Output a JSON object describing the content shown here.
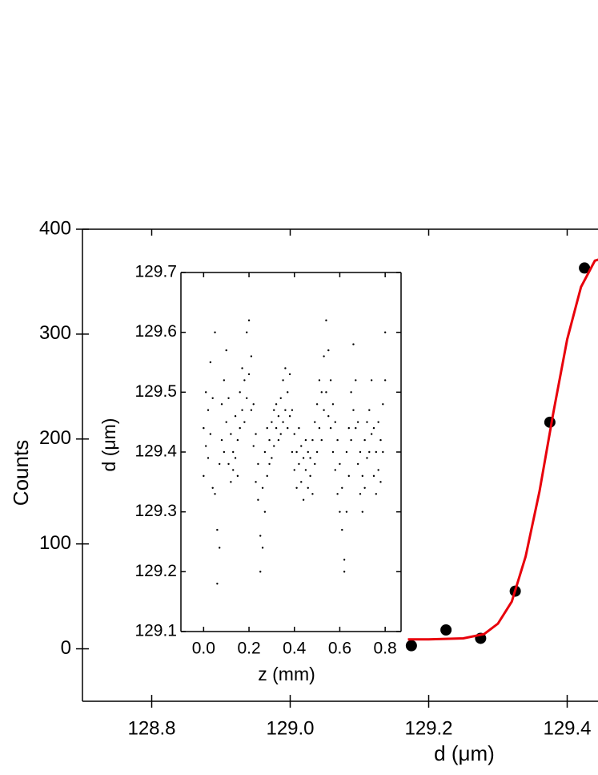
{
  "chart_data": [
    {
      "type": "scatter",
      "x_label": "d (μm)",
      "y_label": "Counts",
      "xlim": [
        128.7,
        129.45
      ],
      "xticks": [
        128.8,
        {
          "value": 129,
          "label": "129.0"
        },
        129.2,
        129.4
      ],
      "ylim": [
        -50,
        400
      ],
      "yticks": [
        0,
        100,
        200,
        300,
        400
      ],
      "series": [
        {
          "mode": "markers",
          "color": "#000000",
          "x": [
            129.175,
            129.225,
            129.275,
            129.325,
            129.375,
            129.425
          ],
          "values": [
            3,
            18,
            10,
            55,
            216,
            363
          ]
        },
        {
          "mode": "line",
          "color": "#e8000b",
          "x": [
            129.17,
            129.2,
            129.25,
            129.28,
            129.3,
            129.32,
            129.34,
            129.36,
            129.38,
            129.4,
            129.42,
            129.44,
            129.45
          ],
          "values": [
            9,
            9,
            10,
            14,
            24,
            45,
            88,
            150,
            225,
            295,
            345,
            370,
            372
          ]
        }
      ]
    },
    {
      "type": "scatter",
      "x_label": "z (mm)",
      "y_label": "d (μm)",
      "xlim": [
        -0.1,
        0.87
      ],
      "xticks": [
        {
          "value": 0,
          "label": "0.0"
        },
        0.2,
        0.4,
        0.6,
        0.8
      ],
      "ylim": [
        129.1,
        129.7
      ],
      "yticks": [
        129.1,
        129.2,
        129.3,
        129.4,
        129.5,
        129.6,
        129.7
      ],
      "series": [
        {
          "mode": "dots",
          "color": "#000000",
          "x": [
            0,
            0,
            0.01,
            0.01,
            0.02,
            0.02,
            0.03,
            0.03,
            0.04,
            0.04,
            0.05,
            0.05,
            0.06,
            0.06,
            0.07,
            0.07,
            0.08,
            0.08,
            0.09,
            0.09,
            0.1,
            0.1,
            0.11,
            0.11,
            0.12,
            0.12,
            0.13,
            0.13,
            0.14,
            0.14,
            0.15,
            0.15,
            0.16,
            0.16,
            0.17,
            0.17,
            0.18,
            0.18,
            0.19,
            0.19,
            0.2,
            0.2,
            0.21,
            0.21,
            0.22,
            0.22,
            0.23,
            0.23,
            0.24,
            0.24,
            0.25,
            0.25,
            0.26,
            0.26,
            0.27,
            0.27,
            0.28,
            0.28,
            0.29,
            0.29,
            0.3,
            0.3,
            0.31,
            0.31,
            0.32,
            0.32,
            0.33,
            0.33,
            0.34,
            0.34,
            0.35,
            0.35,
            0.36,
            0.36,
            0.37,
            0.37,
            0.38,
            0.38,
            0.39,
            0.39,
            0.4,
            0.4,
            0.41,
            0.41,
            0.42,
            0.42,
            0.43,
            0.43,
            0.44,
            0.44,
            0.45,
            0.45,
            0.46,
            0.46,
            0.47,
            0.47,
            0.48,
            0.48,
            0.49,
            0.49,
            0.5,
            0.5,
            0.51,
            0.51,
            0.52,
            0.52,
            0.53,
            0.53,
            0.54,
            0.54,
            0.55,
            0.55,
            0.56,
            0.56,
            0.57,
            0.57,
            0.58,
            0.58,
            0.59,
            0.59,
            0.6,
            0.6,
            0.61,
            0.61,
            0.62,
            0.62,
            0.63,
            0.63,
            0.64,
            0.64,
            0.65,
            0.65,
            0.66,
            0.66,
            0.67,
            0.67,
            0.68,
            0.68,
            0.69,
            0.69,
            0.7,
            0.7,
            0.71,
            0.71,
            0.72,
            0.72,
            0.73,
            0.73,
            0.74,
            0.74,
            0.75,
            0.75,
            0.76,
            0.76,
            0.77,
            0.77,
            0.78,
            0.78,
            0.79,
            0.79,
            0.8,
            0.8
          ],
          "values": [
            129.44,
            129.36,
            129.5,
            129.41,
            129.47,
            129.39,
            129.55,
            129.43,
            129.49,
            129.34,
            129.6,
            129.33,
            129.27,
            129.18,
            129.38,
            129.24,
            129.42,
            129.48,
            129.52,
            129.4,
            129.57,
            129.45,
            129.49,
            129.38,
            129.43,
            129.35,
            129.4,
            129.37,
            129.46,
            129.39,
            129.42,
            129.36,
            129.5,
            129.44,
            129.47,
            129.54,
            129.52,
            129.45,
            129.6,
            129.49,
            129.62,
            129.53,
            129.56,
            129.47,
            129.48,
            129.41,
            129.43,
            129.35,
            129.32,
            129.38,
            129.2,
            129.26,
            129.24,
            129.34,
            129.4,
            129.3,
            129.36,
            129.44,
            129.42,
            129.38,
            129.45,
            129.39,
            129.41,
            129.47,
            129.44,
            129.48,
            129.46,
            129.42,
            129.49,
            129.43,
            129.52,
            129.45,
            129.54,
            129.47,
            129.5,
            129.44,
            129.53,
            129.46,
            129.47,
            129.4,
            129.43,
            129.37,
            129.4,
            129.34,
            129.38,
            129.44,
            129.35,
            129.41,
            129.32,
            129.39,
            129.37,
            129.42,
            129.34,
            129.4,
            129.39,
            129.36,
            129.42,
            129.33,
            129.45,
            129.38,
            129.48,
            129.4,
            129.44,
            129.52,
            129.5,
            129.42,
            129.56,
            129.47,
            129.62,
            129.5,
            129.57,
            129.46,
            129.52,
            129.44,
            129.48,
            129.4,
            129.45,
            129.37,
            129.42,
            129.33,
            129.38,
            129.3,
            129.34,
            129.27,
            129.22,
            129.2,
            129.3,
            129.4,
            129.44,
            129.36,
            129.5,
            129.42,
            129.58,
            129.47,
            129.52,
            129.44,
            129.45,
            129.38,
            129.4,
            129.33,
            129.36,
            129.3,
            129.42,
            129.34,
            129.39,
            129.45,
            129.47,
            129.4,
            129.52,
            129.43,
            129.44,
            129.36,
            129.4,
            129.33,
            129.37,
            129.45,
            129.42,
            129.35,
            129.48,
            129.4,
            129.6,
            129.52
          ]
        }
      ]
    }
  ]
}
